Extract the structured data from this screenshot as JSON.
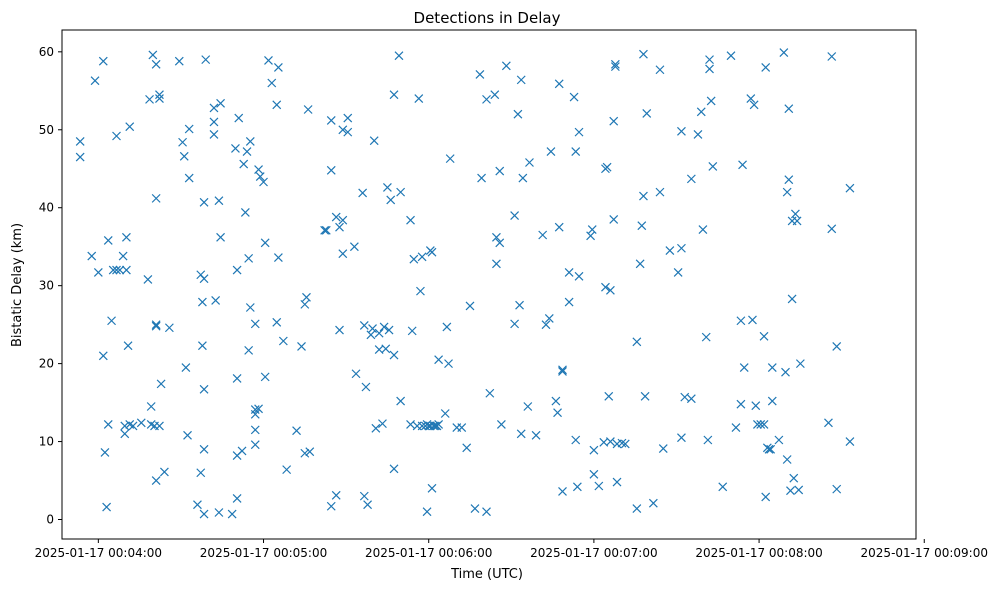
{
  "chart_data": {
    "type": "scatter",
    "title": "Detections in Delay",
    "xlabel": "Time (UTC)",
    "ylabel": "Bistatic Delay (km)",
    "x_unit": "minutes after 2025-01-17 00:00:00",
    "xlim": [
      3.78,
      8.95
    ],
    "ylim": [
      -2.5,
      62.8
    ],
    "x_ticks": [
      {
        "value": 4,
        "label": "2025-01-17 00:04:00"
      },
      {
        "value": 5,
        "label": "2025-01-17 00:05:00"
      },
      {
        "value": 6,
        "label": "2025-01-17 00:06:00"
      },
      {
        "value": 7,
        "label": "2025-01-17 00:07:00"
      },
      {
        "value": 8,
        "label": "2025-01-17 00:08:00"
      },
      {
        "value": 9,
        "label": "2025-01-17 00:09:00"
      }
    ],
    "y_ticks": [
      0,
      10,
      20,
      30,
      40,
      50,
      60
    ],
    "marker": "x",
    "color": "#1f77b4",
    "grid": false,
    "legend": "none",
    "series": [
      {
        "points": [
          [
            3.89,
            48.5
          ],
          [
            3.89,
            46.5
          ],
          [
            3.96,
            33.8
          ],
          [
            3.98,
            56.3
          ],
          [
            4.0,
            31.7
          ],
          [
            4.03,
            58.8
          ],
          [
            4.03,
            21.0
          ],
          [
            4.04,
            8.6
          ],
          [
            4.05,
            1.6
          ],
          [
            4.06,
            35.8
          ],
          [
            4.06,
            12.2
          ],
          [
            4.08,
            25.5
          ],
          [
            4.09,
            32.0
          ],
          [
            4.11,
            49.2
          ],
          [
            4.11,
            32.0
          ],
          [
            4.13,
            32.0
          ],
          [
            4.15,
            33.8
          ],
          [
            4.16,
            11.0
          ],
          [
            4.16,
            12.0
          ],
          [
            4.17,
            36.2
          ],
          [
            4.17,
            32.0
          ],
          [
            4.18,
            22.3
          ],
          [
            4.19,
            50.4
          ],
          [
            4.19,
            12.2
          ],
          [
            4.21,
            12.0
          ],
          [
            4.26,
            12.4
          ],
          [
            4.3,
            30.8
          ],
          [
            4.31,
            53.9
          ],
          [
            4.32,
            14.5
          ],
          [
            4.32,
            12.2
          ],
          [
            4.33,
            59.6
          ],
          [
            4.34,
            12.0
          ],
          [
            4.35,
            58.4
          ],
          [
            4.35,
            41.2
          ],
          [
            4.35,
            25.0
          ],
          [
            4.35,
            24.8
          ],
          [
            4.35,
            5.0
          ],
          [
            4.37,
            54.0
          ],
          [
            4.37,
            54.5
          ],
          [
            4.38,
            17.4
          ],
          [
            4.37,
            12.0
          ],
          [
            4.4,
            6.1
          ],
          [
            4.43,
            24.6
          ],
          [
            4.49,
            58.8
          ],
          [
            4.51,
            48.4
          ],
          [
            4.52,
            46.6
          ],
          [
            4.53,
            19.5
          ],
          [
            4.54,
            10.8
          ],
          [
            4.55,
            50.1
          ],
          [
            4.55,
            43.8
          ],
          [
            4.6,
            1.9
          ],
          [
            4.62,
            31.4
          ],
          [
            4.62,
            6.0
          ],
          [
            4.63,
            27.9
          ],
          [
            4.63,
            22.3
          ],
          [
            4.64,
            40.7
          ],
          [
            4.64,
            30.9
          ],
          [
            4.64,
            16.7
          ],
          [
            4.64,
            9.0
          ],
          [
            4.64,
            0.7
          ],
          [
            4.65,
            59.0
          ],
          [
            4.7,
            51.0
          ],
          [
            4.7,
            52.8
          ],
          [
            4.7,
            49.4
          ],
          [
            4.71,
            28.1
          ],
          [
            4.73,
            40.9
          ],
          [
            4.73,
            0.9
          ],
          [
            4.74,
            53.4
          ],
          [
            4.74,
            36.2
          ],
          [
            4.81,
            0.7
          ],
          [
            4.83,
            47.6
          ],
          [
            4.84,
            32.0
          ],
          [
            4.84,
            18.1
          ],
          [
            4.84,
            8.2
          ],
          [
            4.84,
            2.7
          ],
          [
            4.85,
            51.5
          ],
          [
            4.87,
            8.8
          ],
          [
            4.88,
            45.6
          ],
          [
            4.89,
            39.4
          ],
          [
            4.9,
            47.2
          ],
          [
            4.91,
            21.7
          ],
          [
            4.91,
            33.5
          ],
          [
            4.92,
            48.5
          ],
          [
            4.92,
            27.2
          ],
          [
            4.95,
            25.1
          ],
          [
            4.95,
            14.1
          ],
          [
            4.95,
            13.5
          ],
          [
            4.95,
            11.5
          ],
          [
            4.95,
            9.6
          ],
          [
            4.97,
            44.9
          ],
          [
            4.97,
            14.2
          ],
          [
            4.98,
            44.0
          ],
          [
            5.0,
            43.3
          ],
          [
            5.01,
            35.5
          ],
          [
            5.01,
            18.3
          ],
          [
            5.03,
            58.9
          ],
          [
            5.05,
            56.0
          ],
          [
            5.08,
            53.2
          ],
          [
            5.08,
            25.3
          ],
          [
            5.09,
            58.0
          ],
          [
            5.09,
            33.6
          ],
          [
            5.12,
            22.9
          ],
          [
            5.14,
            6.4
          ],
          [
            5.2,
            11.4
          ],
          [
            5.23,
            22.2
          ],
          [
            5.25,
            27.6
          ],
          [
            5.25,
            8.5
          ],
          [
            5.26,
            28.5
          ],
          [
            5.27,
            52.6
          ],
          [
            5.28,
            8.7
          ],
          [
            5.37,
            37.1
          ],
          [
            5.38,
            37.1
          ],
          [
            5.41,
            51.2
          ],
          [
            5.41,
            44.8
          ],
          [
            5.41,
            1.7
          ],
          [
            5.44,
            3.1
          ],
          [
            5.44,
            38.8
          ],
          [
            5.46,
            37.5
          ],
          [
            5.46,
            24.3
          ],
          [
            5.48,
            34.1
          ],
          [
            5.48,
            38.4
          ],
          [
            5.48,
            50.0
          ],
          [
            5.51,
            51.5
          ],
          [
            5.51,
            49.7
          ],
          [
            5.55,
            35.0
          ],
          [
            5.56,
            18.7
          ],
          [
            5.6,
            41.9
          ],
          [
            5.61,
            24.9
          ],
          [
            5.61,
            3.0
          ],
          [
            5.62,
            17.0
          ],
          [
            5.63,
            1.9
          ],
          [
            5.65,
            23.7
          ],
          [
            5.66,
            24.5
          ],
          [
            5.67,
            48.6
          ],
          [
            5.68,
            11.7
          ],
          [
            5.7,
            23.9
          ],
          [
            5.7,
            21.8
          ],
          [
            5.72,
            12.3
          ],
          [
            5.73,
            24.7
          ],
          [
            5.74,
            21.9
          ],
          [
            5.75,
            42.6
          ],
          [
            5.76,
            24.3
          ],
          [
            5.77,
            41.0
          ],
          [
            5.79,
            21.1
          ],
          [
            5.79,
            54.5
          ],
          [
            5.79,
            6.5
          ],
          [
            5.82,
            59.5
          ],
          [
            5.83,
            15.2
          ],
          [
            5.83,
            42.0
          ],
          [
            5.89,
            38.4
          ],
          [
            5.89,
            12.2
          ],
          [
            5.9,
            24.2
          ],
          [
            5.91,
            33.4
          ],
          [
            5.93,
            12.0
          ],
          [
            5.94,
            54.0
          ],
          [
            5.95,
            29.3
          ],
          [
            5.96,
            33.7
          ],
          [
            5.96,
            12.0
          ],
          [
            5.98,
            12.0
          ],
          [
            5.99,
            12.2
          ],
          [
            5.99,
            1.0
          ],
          [
            6.0,
            12.0
          ],
          [
            6.01,
            34.5
          ],
          [
            6.01,
            12.0
          ],
          [
            6.02,
            4.0
          ],
          [
            6.02,
            34.3
          ],
          [
            6.03,
            12.0
          ],
          [
            6.04,
            12.0
          ],
          [
            6.05,
            12.0
          ],
          [
            6.06,
            20.5
          ],
          [
            6.06,
            12.2
          ],
          [
            6.1,
            13.6
          ],
          [
            6.11,
            24.7
          ],
          [
            6.12,
            20.0
          ],
          [
            6.13,
            46.3
          ],
          [
            6.17,
            11.8
          ],
          [
            6.2,
            11.8
          ],
          [
            6.23,
            9.2
          ],
          [
            6.25,
            27.4
          ],
          [
            6.28,
            1.4
          ],
          [
            6.31,
            57.1
          ],
          [
            6.32,
            43.8
          ],
          [
            6.35,
            1.0
          ],
          [
            6.35,
            53.9
          ],
          [
            6.37,
            16.2
          ],
          [
            6.4,
            54.5
          ],
          [
            6.41,
            36.2
          ],
          [
            6.41,
            32.8
          ],
          [
            6.43,
            44.7
          ],
          [
            6.43,
            35.5
          ],
          [
            6.44,
            12.2
          ],
          [
            6.47,
            58.2
          ],
          [
            6.52,
            39.0
          ],
          [
            6.52,
            25.1
          ],
          [
            6.54,
            52.0
          ],
          [
            6.55,
            27.5
          ],
          [
            6.56,
            11.0
          ],
          [
            6.56,
            56.4
          ],
          [
            6.57,
            43.8
          ],
          [
            6.6,
            14.5
          ],
          [
            6.61,
            45.8
          ],
          [
            6.65,
            10.8
          ],
          [
            6.69,
            36.5
          ],
          [
            6.71,
            25.0
          ],
          [
            6.73,
            25.8
          ],
          [
            6.74,
            47.2
          ],
          [
            6.77,
            15.2
          ],
          [
            6.78,
            13.7
          ],
          [
            6.79,
            37.5
          ],
          [
            6.79,
            55.9
          ],
          [
            6.81,
            19.2
          ],
          [
            6.81,
            19.0
          ],
          [
            6.81,
            3.6
          ],
          [
            6.85,
            27.9
          ],
          [
            6.85,
            31.7
          ],
          [
            6.88,
            54.2
          ],
          [
            6.89,
            47.2
          ],
          [
            6.89,
            10.2
          ],
          [
            6.9,
            4.2
          ],
          [
            6.91,
            31.2
          ],
          [
            6.91,
            49.7
          ],
          [
            6.98,
            36.4
          ],
          [
            6.99,
            37.2
          ],
          [
            7.0,
            8.9
          ],
          [
            7.0,
            5.8
          ],
          [
            7.03,
            4.3
          ],
          [
            7.06,
            9.9
          ],
          [
            7.07,
            45.0
          ],
          [
            7.07,
            29.8
          ],
          [
            7.08,
            45.2
          ],
          [
            7.09,
            15.8
          ],
          [
            7.1,
            29.4
          ],
          [
            7.1,
            10.0
          ],
          [
            7.12,
            38.5
          ],
          [
            7.12,
            51.1
          ],
          [
            7.13,
            58.4
          ],
          [
            7.13,
            58.1
          ],
          [
            7.14,
            9.7
          ],
          [
            7.14,
            4.8
          ],
          [
            7.17,
            9.8
          ],
          [
            7.19,
            9.7
          ],
          [
            7.26,
            22.8
          ],
          [
            7.26,
            1.4
          ],
          [
            7.28,
            32.8
          ],
          [
            7.29,
            37.7
          ],
          [
            7.3,
            59.7
          ],
          [
            7.3,
            41.5
          ],
          [
            7.31,
            15.8
          ],
          [
            7.32,
            52.1
          ],
          [
            7.36,
            2.1
          ],
          [
            7.4,
            57.7
          ],
          [
            7.4,
            42.0
          ],
          [
            7.42,
            9.1
          ],
          [
            7.46,
            34.5
          ],
          [
            7.51,
            31.7
          ],
          [
            7.53,
            34.8
          ],
          [
            7.53,
            49.8
          ],
          [
            7.53,
            10.5
          ],
          [
            7.55,
            15.7
          ],
          [
            7.59,
            43.7
          ],
          [
            7.59,
            15.5
          ],
          [
            7.63,
            49.4
          ],
          [
            7.65,
            52.3
          ],
          [
            7.66,
            37.2
          ],
          [
            7.68,
            23.4
          ],
          [
            7.69,
            10.2
          ],
          [
            7.7,
            59.0
          ],
          [
            7.7,
            57.8
          ],
          [
            7.71,
            53.7
          ],
          [
            7.72,
            45.3
          ],
          [
            7.78,
            4.2
          ],
          [
            7.83,
            59.5
          ],
          [
            7.86,
            11.8
          ],
          [
            7.89,
            25.5
          ],
          [
            7.89,
            14.8
          ],
          [
            7.9,
            45.5
          ],
          [
            7.91,
            19.5
          ],
          [
            7.95,
            54.0
          ],
          [
            7.96,
            25.6
          ],
          [
            7.97,
            53.2
          ],
          [
            7.98,
            14.6
          ],
          [
            7.99,
            12.2
          ],
          [
            8.01,
            12.2
          ],
          [
            8.03,
            12.2
          ],
          [
            8.03,
            23.5
          ],
          [
            8.04,
            58.0
          ],
          [
            8.04,
            2.9
          ],
          [
            8.05,
            9.2
          ],
          [
            8.06,
            9.0
          ],
          [
            8.07,
            9.0
          ],
          [
            8.08,
            19.5
          ],
          [
            8.08,
            15.2
          ],
          [
            8.12,
            10.2
          ],
          [
            8.15,
            59.9
          ],
          [
            8.16,
            18.9
          ],
          [
            8.17,
            42.0
          ],
          [
            8.17,
            7.7
          ],
          [
            8.18,
            52.7
          ],
          [
            8.18,
            43.6
          ],
          [
            8.19,
            3.7
          ],
          [
            8.2,
            28.3
          ],
          [
            8.2,
            38.3
          ],
          [
            8.21,
            5.3
          ],
          [
            8.22,
            39.2
          ],
          [
            8.23,
            38.3
          ],
          [
            8.24,
            3.8
          ],
          [
            8.25,
            20.0
          ],
          [
            8.42,
            12.4
          ],
          [
            8.44,
            37.3
          ],
          [
            8.44,
            59.4
          ],
          [
            8.47,
            22.2
          ],
          [
            8.47,
            3.9
          ],
          [
            8.55,
            42.5
          ],
          [
            8.55,
            10.0
          ]
        ]
      }
    ]
  }
}
